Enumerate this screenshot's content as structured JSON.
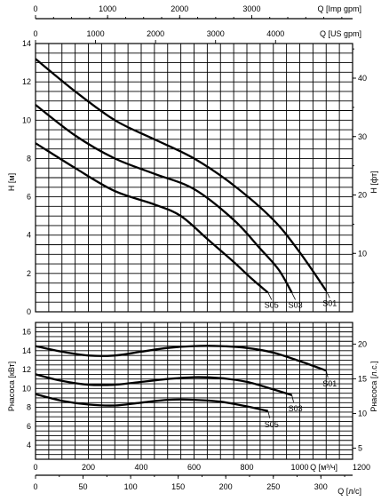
{
  "chart_data": [
    {
      "type": "line",
      "title": "",
      "x_axes": {
        "imp_gpm": {
          "label": "Q [Imp gpm]",
          "ticks": [
            "0",
            "1000",
            "2000",
            "3000"
          ]
        },
        "us_gpm": {
          "label": "Q [US gpm]",
          "ticks": [
            "0",
            "1000",
            "2000",
            "3000",
            "4000"
          ]
        }
      },
      "y_axes": {
        "left": {
          "label": "H [м]",
          "range": [
            0,
            14
          ],
          "ticks": [
            "0",
            "2",
            "4",
            "6",
            "8",
            "10",
            "12",
            "14"
          ]
        },
        "right": {
          "label": "H [фт]",
          "ticks": [
            "10",
            "20",
            "30",
            "40"
          ]
        }
      },
      "grid": true,
      "xlim_m3h": [
        0,
        1200
      ],
      "series": [
        {
          "name": "S01",
          "x": [
            0,
            150,
            300,
            450,
            600,
            750,
            900,
            1000,
            1100
          ],
          "y": [
            13.2,
            11.5,
            10.0,
            9.0,
            8.0,
            6.6,
            4.8,
            3.1,
            1.1
          ]
        },
        {
          "name": "S03",
          "x": [
            0,
            150,
            300,
            450,
            600,
            750,
            850,
            920,
            970
          ],
          "y": [
            10.8,
            9.2,
            8.0,
            7.2,
            6.4,
            4.8,
            3.3,
            2.2,
            1.0
          ]
        },
        {
          "name": "S05",
          "x": [
            0,
            150,
            300,
            450,
            550,
            650,
            750,
            820,
            880
          ],
          "y": [
            8.8,
            7.5,
            6.3,
            5.6,
            5.0,
            3.8,
            2.6,
            1.7,
            1.0
          ]
        }
      ]
    },
    {
      "type": "line",
      "title": "",
      "x_axes": {
        "m3h": {
          "label": "Q [м³/ч]",
          "range": [
            0,
            1200
          ],
          "ticks": [
            "0",
            "200",
            "400",
            "600",
            "800",
            "1000",
            "1200"
          ]
        },
        "ls": {
          "label": "Q [л/с]",
          "ticks": [
            "0",
            "50",
            "100",
            "150",
            "200",
            "250",
            "300"
          ]
        }
      },
      "y_axes": {
        "left": {
          "label": "Pнасоса [кВт]",
          "range": [
            2.5,
            17
          ],
          "ticks": [
            "4",
            "6",
            "8",
            "10",
            "12",
            "14",
            "16"
          ]
        },
        "right": {
          "label": "Pнасоса [л.с.]",
          "ticks": [
            "5",
            "10",
            "15",
            "20"
          ]
        }
      },
      "grid": true,
      "series": [
        {
          "name": "S01",
          "x": [
            0,
            100,
            200,
            300,
            400,
            500,
            600,
            700,
            800,
            900,
            1000,
            1100
          ],
          "y": [
            14.5,
            13.9,
            13.5,
            13.5,
            13.9,
            14.3,
            14.5,
            14.5,
            14.3,
            13.8,
            12.9,
            11.9
          ]
        },
        {
          "name": "S03",
          "x": [
            0,
            100,
            200,
            300,
            400,
            500,
            600,
            700,
            800,
            900,
            970
          ],
          "y": [
            11.5,
            10.8,
            10.4,
            10.4,
            10.7,
            11.0,
            11.2,
            11.1,
            10.7,
            9.9,
            9.3
          ]
        },
        {
          "name": "S05",
          "x": [
            0,
            100,
            200,
            300,
            400,
            500,
            600,
            700,
            800,
            880
          ],
          "y": [
            9.4,
            8.7,
            8.3,
            8.2,
            8.5,
            8.8,
            8.8,
            8.6,
            8.1,
            7.6
          ]
        }
      ]
    }
  ]
}
